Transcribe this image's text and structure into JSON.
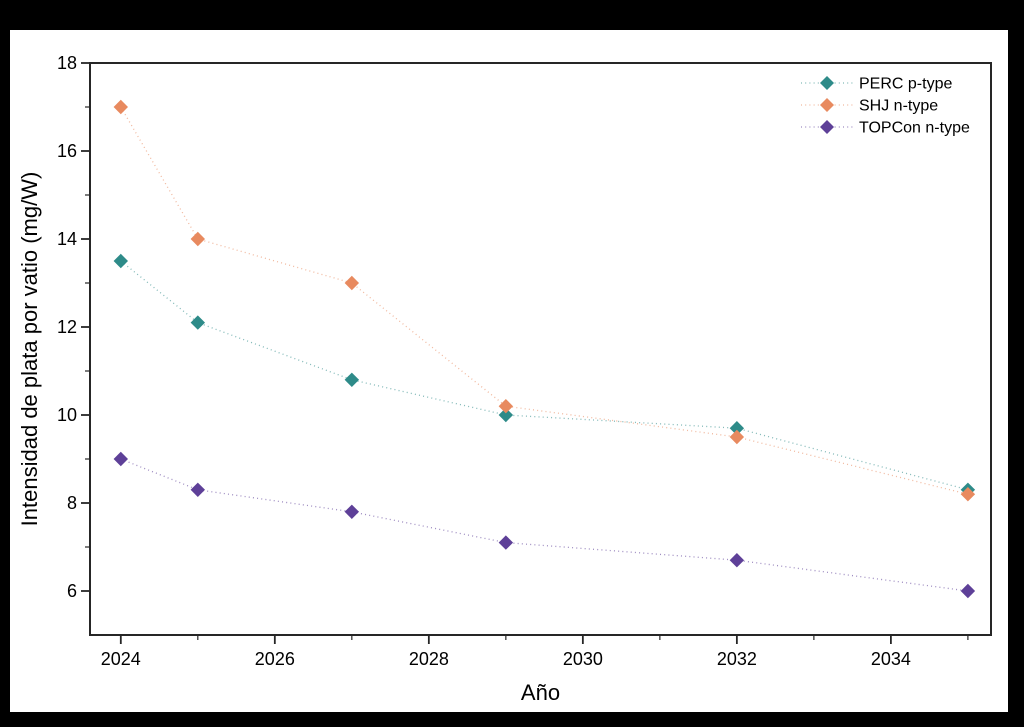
{
  "chart_data": {
    "type": "scatter",
    "title": "",
    "xlabel": "Año",
    "ylabel": "Intensidad de plata por vatio (mg/W)",
    "x": [
      2024,
      2025,
      2027,
      2029,
      2032,
      2035
    ],
    "series": [
      {
        "name": "PERC p-type",
        "color": "#2e8b89",
        "values": [
          13.5,
          12.1,
          10.8,
          10.0,
          9.7,
          8.3
        ]
      },
      {
        "name": "SHJ n-type",
        "color": "#e88a5f",
        "values": [
          17.0,
          14.0,
          13.0,
          10.2,
          9.5,
          8.2
        ]
      },
      {
        "name": "TOPCon n-type",
        "color": "#5e4098",
        "values": [
          9.0,
          8.3,
          7.8,
          7.1,
          6.7,
          6.0
        ]
      }
    ],
    "xlim": [
      2023.6,
      2035.3
    ],
    "ylim": [
      5.0,
      18.0
    ],
    "xticks": [
      2024,
      2026,
      2028,
      2030,
      2032,
      2034
    ],
    "xtick_labels": [
      "2024",
      "2026",
      "2028",
      "2030",
      "2032",
      "2034"
    ],
    "minor_xticks": [
      2025,
      2027,
      2029,
      2031,
      2033,
      2035
    ],
    "yticks": [
      6,
      8,
      10,
      12,
      14,
      16,
      18
    ],
    "ytick_labels": [
      "6",
      "8",
      "10",
      "12",
      "14",
      "16",
      "18"
    ],
    "minor_yticks": [
      7,
      9,
      11,
      13,
      15,
      17
    ],
    "grid": false,
    "legend_position": "top-right",
    "marker": "diamond",
    "line_style": "dotted",
    "colors": {
      "frame": "#262626",
      "text": "#000000",
      "figure_background": "#ffffff",
      "page_background": "#000000"
    }
  }
}
